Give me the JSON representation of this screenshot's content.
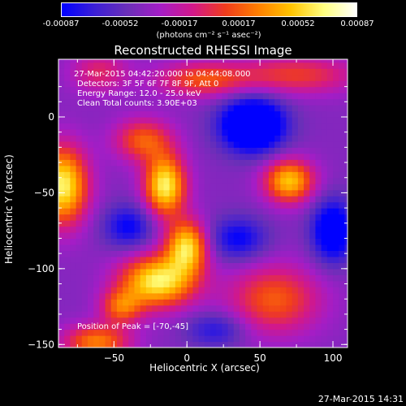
{
  "colorbar": {
    "ticks": [
      "-0.00087",
      "-0.00052",
      "-0.00017",
      "0.00017",
      "0.00052",
      "0.00087"
    ],
    "units": "(photons cm⁻² s⁻¹ asec⁻²)",
    "colors": [
      "#0000ff",
      "#3b1fd6",
      "#6a2fb8",
      "#a41dc6",
      "#d2188a",
      "#f03c1c",
      "#ff7f00",
      "#ffc400",
      "#ffff80",
      "#ffffff"
    ]
  },
  "chart_data": {
    "type": "heatmap",
    "title": "Reconstructed RHESSI Image",
    "xlabel": "Heliocentric X (arcsec)",
    "ylabel": "Heliocentric Y (arcsec)",
    "xlim": [
      -88,
      110
    ],
    "ylim": [
      -152,
      38
    ],
    "xticks": [
      -50,
      0,
      50,
      100
    ],
    "yticks": [
      0,
      -50,
      -100,
      -150
    ],
    "xtick_labels": [
      "−50",
      "0",
      "50",
      "100"
    ],
    "ytick_labels": [
      "0",
      "−50",
      "−100",
      "−150"
    ],
    "value_range": [
      -0.00087,
      0.00087
    ],
    "blobs": [
      {
        "x": -85,
        "y": -45,
        "sx": 12,
        "sy": 18,
        "amp": 1.0
      },
      {
        "x": -15,
        "y": -45,
        "sx": 10,
        "sy": 14,
        "amp": 1.0
      },
      {
        "x": -30,
        "y": -15,
        "sx": 14,
        "sy": 10,
        "amp": 0.55
      },
      {
        "x": 0,
        "y": -85,
        "sx": 10,
        "sy": 12,
        "amp": 0.9
      },
      {
        "x": -20,
        "y": -108,
        "sx": 18,
        "sy": 12,
        "amp": 1.0
      },
      {
        "x": -45,
        "y": -125,
        "sx": 10,
        "sy": 8,
        "amp": 0.55
      },
      {
        "x": 70,
        "y": -42,
        "sx": 12,
        "sy": 10,
        "amp": 0.85
      },
      {
        "x": 60,
        "y": -120,
        "sx": 22,
        "sy": 16,
        "amp": 0.55
      },
      {
        "x": -62,
        "y": -148,
        "sx": 16,
        "sy": 8,
        "amp": 0.65
      },
      {
        "x": 10,
        "y": 25,
        "sx": 22,
        "sy": 8,
        "amp": 0.5
      },
      {
        "x": -60,
        "y": 30,
        "sx": 14,
        "sy": 10,
        "amp": 0.35
      },
      {
        "x": 75,
        "y": 28,
        "sx": 30,
        "sy": 9,
        "amp": 0.45
      },
      {
        "x": 45,
        "y": -5,
        "sx": 15,
        "sy": 12,
        "amp": -1.0
      },
      {
        "x": 100,
        "y": -75,
        "sx": 10,
        "sy": 14,
        "amp": -0.7
      },
      {
        "x": -40,
        "y": -72,
        "sx": 12,
        "sy": 10,
        "amp": -0.45
      },
      {
        "x": 35,
        "y": -80,
        "sx": 14,
        "sy": 10,
        "amp": -0.45
      },
      {
        "x": 20,
        "y": -140,
        "sx": 14,
        "sy": 8,
        "amp": -0.35
      }
    ]
  },
  "annotations": {
    "time_range": "27-Mar-2015 04:42:20.000 to 04:44:08.000",
    "detectors": "Detectors: 3F 5F 6F 7F 8F 9F, Att 0",
    "energy": "Energy Range: 12.0 - 25.0 keV",
    "method": "Clean    Total counts: 3.90E+03",
    "peak": "Position of Peak = [-70,-45]"
  },
  "timestamp": "27-Mar-2015 14:31"
}
